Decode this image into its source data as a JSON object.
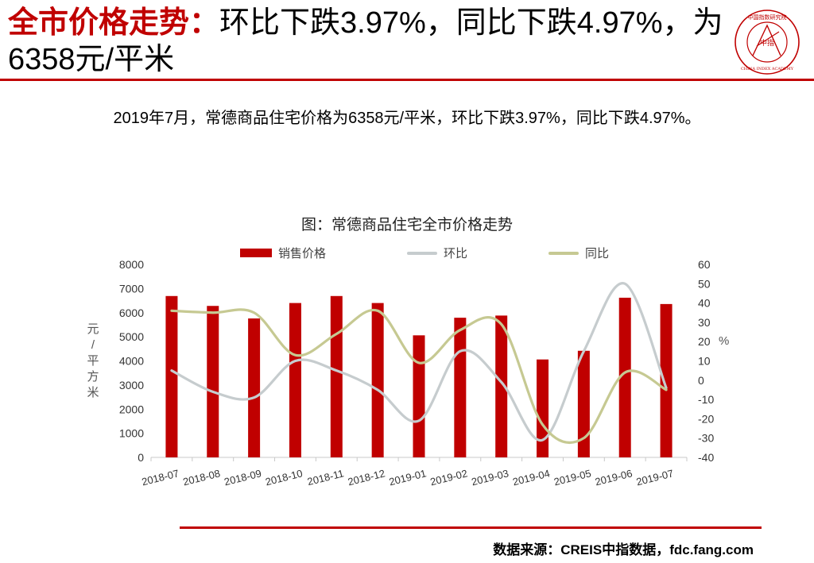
{
  "header": {
    "title_accent": "全市价格走势：",
    "title_rest": "环比下跌3.97%，同比下跌4.97%，为6358元/平米"
  },
  "summary": "2019年7月，常德商品住宅价格为6358元/平米，环比下跌3.97%，同比下跌4.97%。",
  "logo": {
    "text_top": "中国指数研究院",
    "text_center": "中指",
    "text_bottom": "CHINA INDEX ACADEMY",
    "color": "#c00000"
  },
  "chart_data": {
    "type": "bar",
    "title": "图：常德商品住宅全市价格走势",
    "categories": [
      "2018-07",
      "2018-08",
      "2018-09",
      "2018-10",
      "2018-11",
      "2018-12",
      "2019-01",
      "2019-02",
      "2019-03",
      "2019-04",
      "2019-05",
      "2019-06",
      "2019-07"
    ],
    "series": [
      {
        "name": "销售价格",
        "kind": "bar",
        "axis": "left",
        "color": "#c00000",
        "values": [
          6690,
          6280,
          5760,
          6400,
          6690,
          6400,
          5060,
          5790,
          5880,
          4060,
          4420,
          6620,
          6358
        ]
      },
      {
        "name": "环比",
        "kind": "line",
        "axis": "right",
        "color": "#c6ccce",
        "values": [
          5,
          -6,
          -9,
          10,
          5,
          -5,
          -21,
          15,
          -1,
          -31,
          15,
          50,
          -3.97
        ]
      },
      {
        "name": "同比",
        "kind": "line",
        "axis": "right",
        "color": "#c6c992",
        "values": [
          36,
          35,
          35,
          13,
          24,
          36,
          9,
          26,
          29,
          -23,
          -30,
          4,
          -4.97
        ]
      }
    ],
    "ylabel": "元/平方米",
    "ylim": [
      0,
      8000
    ],
    "yticks": [
      "0",
      "1000",
      "2000",
      "3000",
      "4000",
      "5000",
      "6000",
      "7000",
      "8000"
    ],
    "y2label": "%",
    "y2lim": [
      -40,
      60
    ],
    "y2ticks": [
      "-40",
      "-30",
      "-20",
      "-10",
      "0",
      "10",
      "20",
      "30",
      "40",
      "50",
      "60"
    ],
    "grid": false,
    "legend_position": "top"
  },
  "source": "数据来源：CREIS中指数据，fdc.fang.com"
}
